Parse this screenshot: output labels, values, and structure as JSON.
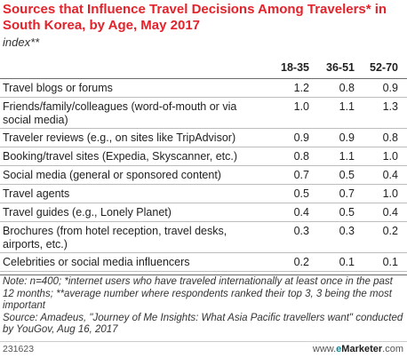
{
  "chart_data": {
    "type": "table",
    "title": "Sources that Influence Travel Decisions Among Travelers* in South Korea, by Age, May 2017",
    "subtitle": "index**",
    "columns": [
      "18-35",
      "36-51",
      "52-70"
    ],
    "rows": [
      {
        "label": "Travel blogs or forums",
        "values": [
          "1.2",
          "0.8",
          "0.9"
        ]
      },
      {
        "label": "Friends/family/colleagues (word-of-mouth or via social media)",
        "values": [
          "1.0",
          "1.1",
          "1.3"
        ]
      },
      {
        "label": "Traveler reviews (e.g., on sites like TripAdvisor)",
        "values": [
          "0.9",
          "0.9",
          "0.8"
        ]
      },
      {
        "label": "Booking/travel sites (Expedia, Skyscanner, etc.)",
        "values": [
          "0.8",
          "1.1",
          "1.0"
        ]
      },
      {
        "label": "Social media (general or sponsored content)",
        "values": [
          "0.7",
          "0.5",
          "0.4"
        ]
      },
      {
        "label": "Travel agents",
        "values": [
          "0.5",
          "0.7",
          "1.0"
        ]
      },
      {
        "label": "Travel guides (e.g., Lonely Planet)",
        "values": [
          "0.4",
          "0.5",
          "0.4"
        ]
      },
      {
        "label": "Brochures (from hotel reception, travel desks, airports, etc.)",
        "values": [
          "0.3",
          "0.3",
          "0.2"
        ]
      },
      {
        "label": "Celebrities or social media influencers",
        "values": [
          "0.2",
          "0.1",
          "0.1"
        ]
      }
    ]
  },
  "footer": {
    "note": "Note: n=400; *internet users who have traveled internationally at least once in the past 12 months; **average number where respondents ranked their top 3, 3 being the most important",
    "source": "Source: Amadeus, \"Journey of Me Insights: What Asia Pacific travellers want\" conducted by YouGov, Aug 16, 2017",
    "chart_id": "231623",
    "brand_prefix": "www.",
    "brand_e": "e",
    "brand_name": "Marketer",
    "brand_suffix": ".com"
  },
  "colors": {
    "title": "#e3232b",
    "brand_accent": "#0b8a9c"
  }
}
